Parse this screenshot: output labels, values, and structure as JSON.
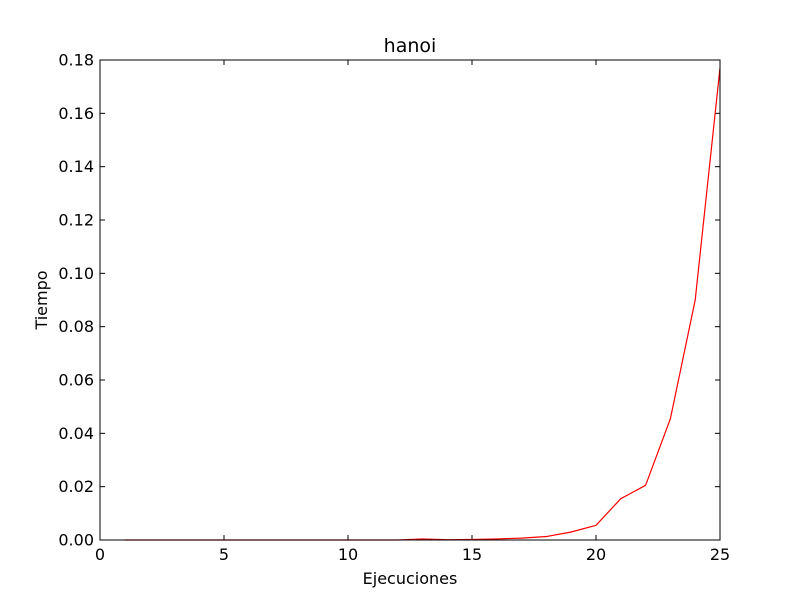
{
  "chart_data": {
    "type": "line",
    "title": "hanoi",
    "xlabel": "Ejecuciones",
    "ylabel": "Tiempo",
    "xlim": [
      0,
      25
    ],
    "ylim": [
      0,
      0.18
    ],
    "xticks": [
      0,
      5,
      10,
      15,
      20,
      25
    ],
    "xtick_labels": [
      "0",
      "5",
      "10",
      "15",
      "20",
      "25"
    ],
    "yticks": [
      0,
      0.02,
      0.04,
      0.06,
      0.08,
      0.1,
      0.12,
      0.14,
      0.16,
      0.18
    ],
    "ytick_labels": [
      "0.00",
      "0.02",
      "0.04",
      "0.06",
      "0.08",
      "0.10",
      "0.12",
      "0.14",
      "0.16",
      "0.18"
    ],
    "grid": false,
    "series": [
      {
        "color": "#ff0000",
        "x": [
          1,
          2,
          3,
          4,
          5,
          6,
          7,
          8,
          9,
          10,
          11,
          12,
          13,
          14,
          15,
          16,
          17,
          18,
          19,
          20,
          21,
          22,
          23,
          24,
          25
        ],
        "y": [
          0.0,
          0.0,
          0.0,
          0.0,
          0.0,
          0.0,
          0.0,
          0.0,
          0.0,
          0.0,
          0.0,
          0.0,
          0.0004,
          0.0001,
          0.0002,
          0.0004,
          0.0007,
          0.0013,
          0.003,
          0.0055,
          0.0155,
          0.0205,
          0.0455,
          0.09,
          0.177
        ]
      }
    ]
  }
}
